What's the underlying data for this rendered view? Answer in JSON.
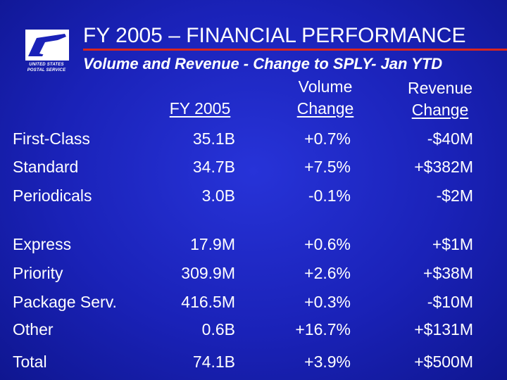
{
  "logo": {
    "line1": "UNITED STATES",
    "line2": "POSTAL SERVICE"
  },
  "header": {
    "title": "FY 2005 – FINANCIAL PERFORMANCE",
    "subtitle": "Volume and Revenue - Change to SPLY- Jan YTD"
  },
  "columns": {
    "fy": "FY 2005",
    "volume_line1": "Volume",
    "volume_line2": "Change",
    "revenue_line1": "Revenue",
    "revenue_line2": "Change"
  },
  "rows": [
    {
      "label": "First-Class",
      "fy": "35.1B",
      "volume": "+0.7%",
      "revenue": "-$40M"
    },
    {
      "label": "Standard",
      "fy": "34.7B",
      "volume": "+7.5%",
      "revenue": "+$382M"
    },
    {
      "label": "Periodicals",
      "fy": "3.0B",
      "volume": "-0.1%",
      "revenue": "-$2M"
    },
    {
      "label": "Express",
      "fy": "17.9M",
      "volume": "+0.6%",
      "revenue": "+$1M"
    },
    {
      "label": "Priority",
      "fy": "309.9M",
      "volume": "+2.6%",
      "revenue": "+$38M"
    },
    {
      "label": "Package Serv.",
      "fy": "416.5M",
      "volume": "+0.3%",
      "revenue": "-$10M"
    },
    {
      "label": "Other",
      "fy": "0.6B",
      "volume": "+16.7%",
      "revenue": "+$131M"
    },
    {
      "label": "Total",
      "fy": "74.1B",
      "volume": "+3.9%",
      "revenue": "+$500M"
    }
  ],
  "colors": {
    "background": "#1a22b8",
    "title_rule": "#d8261e",
    "text": "#ffffff"
  }
}
